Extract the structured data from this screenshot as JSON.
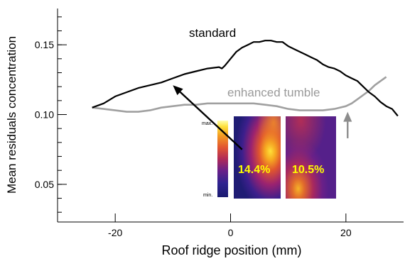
{
  "chart_data": {
    "type": "line",
    "xlabel": "Roof ridge position (mm)",
    "ylabel": "Mean residuals concentration",
    "xlim": [
      -30,
      30
    ],
    "ylim": [
      0.023,
      0.176
    ],
    "x_ticks": [
      -20,
      0,
      20
    ],
    "x_tick_labels": [
      "-20",
      "0",
      "20"
    ],
    "y_ticks": [
      0.05,
      0.1,
      0.15
    ],
    "y_tick_labels": [
      "0.05",
      "0.10",
      "0.15"
    ],
    "grid": false,
    "series": [
      {
        "name": "standard",
        "color": "#000000",
        "x": [
          -24,
          -22,
          -20,
          -18,
          -16,
          -14,
          -12,
          -10,
          -8,
          -6,
          -4,
          -2,
          -1.5,
          -1,
          0,
          1,
          2,
          3,
          4,
          5,
          6,
          7,
          8,
          9,
          10,
          11,
          12,
          13,
          14,
          15,
          16,
          17,
          18,
          19,
          20,
          21,
          22,
          23,
          24,
          25,
          26,
          27,
          28,
          29
        ],
        "y": [
          0.105,
          0.108,
          0.113,
          0.116,
          0.119,
          0.121,
          0.123,
          0.126,
          0.129,
          0.131,
          0.133,
          0.134,
          0.133,
          0.135,
          0.14,
          0.145,
          0.148,
          0.15,
          0.152,
          0.152,
          0.153,
          0.153,
          0.152,
          0.152,
          0.149,
          0.147,
          0.145,
          0.143,
          0.141,
          0.139,
          0.136,
          0.134,
          0.133,
          0.131,
          0.128,
          0.126,
          0.124,
          0.12,
          0.116,
          0.113,
          0.109,
          0.106,
          0.104,
          0.099
        ]
      },
      {
        "name": "enhanced tumble",
        "color": "#a0a0a0",
        "x": [
          -24,
          -22,
          -20,
          -18,
          -16,
          -14,
          -12,
          -10,
          -8,
          -6,
          -4,
          -2,
          0,
          2,
          4,
          6,
          8,
          10,
          12,
          14,
          16,
          18,
          20,
          21,
          22,
          23,
          24,
          25,
          26,
          27
        ],
        "y": [
          0.105,
          0.104,
          0.103,
          0.102,
          0.102,
          0.103,
          0.105,
          0.106,
          0.107,
          0.107,
          0.108,
          0.108,
          0.108,
          0.108,
          0.108,
          0.107,
          0.106,
          0.104,
          0.103,
          0.103,
          0.103,
          0.104,
          0.106,
          0.108,
          0.111,
          0.114,
          0.117,
          0.121,
          0.124,
          0.127
        ]
      }
    ],
    "annotations": {
      "standard_label": "standard",
      "tumble_label": "enhanced tumble",
      "colorbar_max": "max.",
      "colorbar_min": "min.",
      "inset_left_value": "14.4%",
      "inset_right_value": "10.5%"
    },
    "arrows": [
      {
        "from": [
          2,
          0.075
        ],
        "to": [
          -10,
          0.121
        ],
        "color": "#000000"
      },
      {
        "from": [
          20.3,
          0.083
        ],
        "to": [
          20.3,
          0.102
        ],
        "color": "#8c8c8c"
      }
    ],
    "colors": {
      "inset_text": "#ffff00",
      "colormap": [
        "#1a1a66",
        "#3a1f8a",
        "#7a1f80",
        "#c0304a",
        "#e8602a",
        "#f5a020",
        "#ffe03a",
        "#ffffa0"
      ]
    }
  }
}
